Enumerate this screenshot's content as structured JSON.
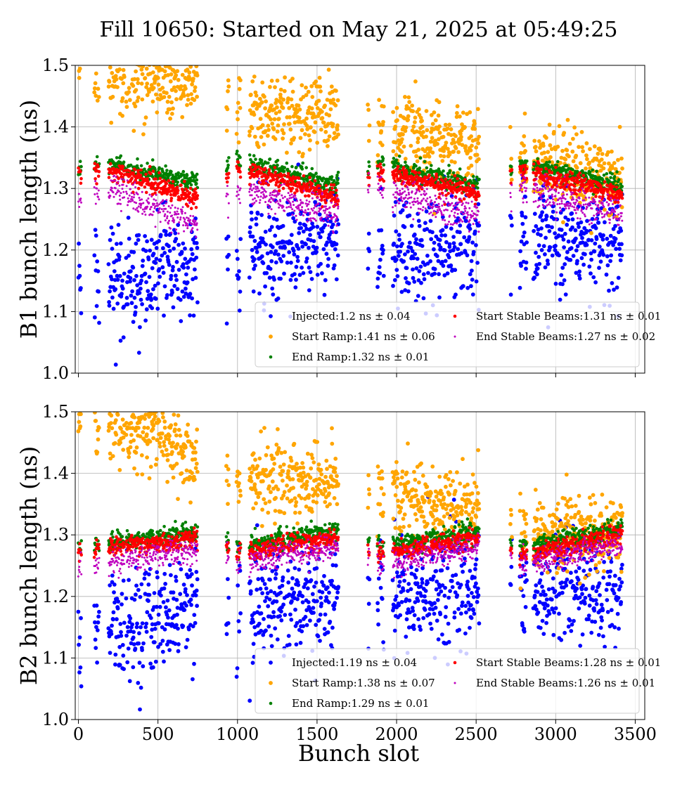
{
  "figure": {
    "title": "Fill 10650: Started on May 21, 2025 at 05:49:25"
  },
  "chart_data": [
    {
      "type": "scatter",
      "title": "",
      "xlabel": "",
      "ylabel": "B1 bunch length (ns)",
      "xlim": [
        -20,
        3560
      ],
      "ylim": [
        1.0,
        1.5
      ],
      "xticks": [
        0,
        500,
        1000,
        1500,
        2000,
        2500,
        3000,
        3500
      ],
      "yticks": [
        1.0,
        1.1,
        1.2,
        1.3,
        1.4,
        1.5
      ],
      "xtick_labels_shown": false,
      "grid": true,
      "legend": {
        "placement": "lower-right",
        "columns": 2
      },
      "trains_x": [
        [
          0,
          20
        ],
        [
          100,
          130
        ],
        [
          190,
          290
        ],
        [
          300,
          410
        ],
        [
          415,
          520
        ],
        [
          525,
          635
        ],
        [
          640,
          750
        ],
        [
          930,
          945
        ],
        [
          995,
          1020
        ],
        [
          1075,
          1185
        ],
        [
          1190,
          1300
        ],
        [
          1310,
          1420
        ],
        [
          1425,
          1535
        ],
        [
          1540,
          1635
        ],
        [
          1820,
          1830
        ],
        [
          1880,
          1920
        ],
        [
          1975,
          2085
        ],
        [
          2090,
          2200
        ],
        [
          2205,
          2315
        ],
        [
          2320,
          2420
        ],
        [
          2425,
          2520
        ],
        [
          2715,
          2725
        ],
        [
          2775,
          2820
        ],
        [
          2860,
          2970
        ],
        [
          2975,
          3085
        ],
        [
          3090,
          3200
        ],
        [
          3205,
          3310
        ],
        [
          3320,
          3420
        ]
      ],
      "series": [
        {
          "name": "Injected:1.2 ns ± 0.04",
          "color": "#0000ff",
          "marker": "large",
          "profile": [
            [
              0,
              1.13
            ],
            [
              740,
              1.18
            ],
            [
              1000,
              1.2
            ],
            [
              1640,
              1.22
            ],
            [
              1880,
              1.2
            ],
            [
              2520,
              1.21
            ],
            [
              2775,
              1.22
            ],
            [
              3420,
              1.21
            ]
          ],
          "spread": 0.045
        },
        {
          "name": "Start Ramp:1.41 ns ± 0.06",
          "color": "#ffa500",
          "marker": "large",
          "profile": [
            [
              0,
              1.49
            ],
            [
              740,
              1.47
            ],
            [
              1000,
              1.43
            ],
            [
              1640,
              1.42
            ],
            [
              1880,
              1.4
            ],
            [
              2520,
              1.37
            ],
            [
              2775,
              1.35
            ],
            [
              3420,
              1.31
            ]
          ],
          "spread": 0.03
        },
        {
          "name": "End Ramp:1.32 ns ± 0.01",
          "color": "#008000",
          "marker": "medium",
          "profile": [
            [
              0,
              1.33
            ],
            [
              190,
              1.34
            ],
            [
              740,
              1.31
            ],
            [
              1000,
              1.345
            ],
            [
              1640,
              1.305
            ],
            [
              1880,
              1.34
            ],
            [
              2520,
              1.305
            ],
            [
              2775,
              1.34
            ],
            [
              3420,
              1.305
            ]
          ],
          "spread": 0.008
        },
        {
          "name": "Start Stable Beams:1.31 ns ± 0.01",
          "color": "#ff0000",
          "marker": "medium",
          "profile": [
            [
              0,
              1.32
            ],
            [
              190,
              1.33
            ],
            [
              740,
              1.285
            ],
            [
              1000,
              1.335
            ],
            [
              1640,
              1.285
            ],
            [
              1880,
              1.33
            ],
            [
              2520,
              1.29
            ],
            [
              2775,
              1.33
            ],
            [
              3420,
              1.29
            ]
          ],
          "spread": 0.008
        },
        {
          "name": "End Stable Beams:1.27 ns ± 0.02",
          "color": "#bf00bf",
          "marker": "small",
          "profile": [
            [
              0,
              1.28
            ],
            [
              190,
              1.3
            ],
            [
              740,
              1.24
            ],
            [
              1000,
              1.3
            ],
            [
              1640,
              1.255
            ],
            [
              1880,
              1.3
            ],
            [
              2520,
              1.255
            ],
            [
              2775,
              1.3
            ],
            [
              3420,
              1.255
            ]
          ],
          "spread": 0.012
        }
      ]
    },
    {
      "type": "scatter",
      "title": "",
      "xlabel": "Bunch slot",
      "ylabel": "B2 bunch length (ns)",
      "xlim": [
        -20,
        3560
      ],
      "ylim": [
        1.0,
        1.5
      ],
      "xticks": [
        0,
        500,
        1000,
        1500,
        2000,
        2500,
        3000,
        3500
      ],
      "yticks": [
        1.0,
        1.1,
        1.2,
        1.3,
        1.4,
        1.5
      ],
      "xtick_labels_shown": true,
      "grid": true,
      "legend": {
        "placement": "lower-right",
        "columns": 2
      },
      "trains_x": [
        [
          0,
          20
        ],
        [
          100,
          130
        ],
        [
          190,
          290
        ],
        [
          300,
          410
        ],
        [
          415,
          520
        ],
        [
          525,
          635
        ],
        [
          640,
          750
        ],
        [
          930,
          945
        ],
        [
          995,
          1020
        ],
        [
          1075,
          1185
        ],
        [
          1190,
          1300
        ],
        [
          1310,
          1420
        ],
        [
          1425,
          1535
        ],
        [
          1540,
          1635
        ],
        [
          1820,
          1830
        ],
        [
          1880,
          1920
        ],
        [
          1975,
          2085
        ],
        [
          2090,
          2200
        ],
        [
          2205,
          2315
        ],
        [
          2320,
          2420
        ],
        [
          2425,
          2520
        ],
        [
          2715,
          2725
        ],
        [
          2775,
          2820
        ],
        [
          2860,
          2970
        ],
        [
          2975,
          3085
        ],
        [
          3090,
          3200
        ],
        [
          3205,
          3310
        ],
        [
          3320,
          3420
        ]
      ],
      "series": [
        {
          "name": "Injected:1.19 ns ± 0.04",
          "color": "#0000ff",
          "marker": "large",
          "profile": [
            [
              0,
              1.12
            ],
            [
              740,
              1.19
            ],
            [
              1000,
              1.18
            ],
            [
              1640,
              1.2
            ],
            [
              1880,
              1.2
            ],
            [
              2520,
              1.21
            ],
            [
              2775,
              1.2
            ],
            [
              3420,
              1.22
            ]
          ],
          "spread": 0.045
        },
        {
          "name": "Start Ramp:1.38 ns ± 0.07",
          "color": "#ffa500",
          "marker": "large",
          "profile": [
            [
              0,
              1.49
            ],
            [
              500,
              1.47
            ],
            [
              740,
              1.41
            ],
            [
              1000,
              1.39
            ],
            [
              1640,
              1.39
            ],
            [
              1880,
              1.37
            ],
            [
              2520,
              1.34
            ],
            [
              2775,
              1.3
            ],
            [
              3420,
              1.31
            ]
          ],
          "spread": 0.03
        },
        {
          "name": "End Ramp:1.29 ns ± 0.01",
          "color": "#008000",
          "marker": "medium",
          "profile": [
            [
              0,
              1.28
            ],
            [
              740,
              1.305
            ],
            [
              1000,
              1.28
            ],
            [
              1640,
              1.31
            ],
            [
              1880,
              1.28
            ],
            [
              2520,
              1.305
            ],
            [
              2775,
              1.28
            ],
            [
              3420,
              1.31
            ]
          ],
          "spread": 0.008
        },
        {
          "name": "Start Stable Beams:1.28 ns ± 0.01",
          "color": "#ff0000",
          "marker": "medium",
          "profile": [
            [
              0,
              1.27
            ],
            [
              740,
              1.295
            ],
            [
              1000,
              1.27
            ],
            [
              1640,
              1.295
            ],
            [
              1880,
              1.27
            ],
            [
              2520,
              1.295
            ],
            [
              2775,
              1.265
            ],
            [
              3420,
              1.3
            ]
          ],
          "spread": 0.008
        },
        {
          "name": "End Stable Beams:1.26 ns ± 0.01",
          "color": "#bf00bf",
          "marker": "small",
          "profile": [
            [
              0,
              1.245
            ],
            [
              740,
              1.275
            ],
            [
              1000,
              1.255
            ],
            [
              1640,
              1.28
            ],
            [
              1880,
              1.25
            ],
            [
              2520,
              1.28
            ],
            [
              2775,
              1.25
            ],
            [
              3420,
              1.285
            ]
          ],
          "spread": 0.01
        }
      ]
    }
  ]
}
